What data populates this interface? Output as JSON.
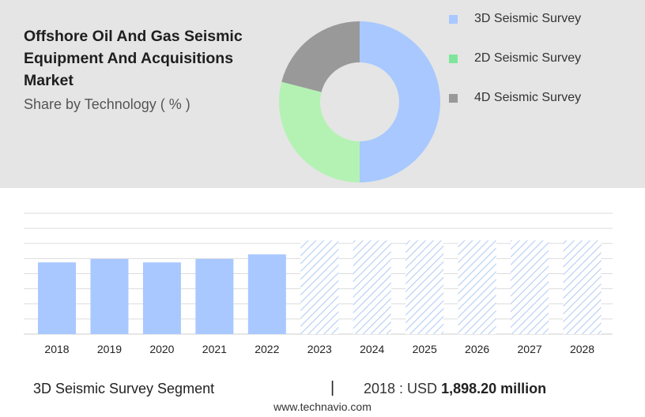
{
  "header": {
    "title": "Offshore Oil And Gas Seismic Equipment And Acquisitions Market",
    "subtitle": "Share by Technology ( % )"
  },
  "chart_data": [
    {
      "type": "pie",
      "variant": "donut",
      "categories": [
        "3D Seismic Survey",
        "2D Seismic Survey",
        "4D Seismic Survey"
      ],
      "values": [
        50,
        29,
        21
      ],
      "colors": [
        "#a8c8ff",
        "#b4f2b4",
        "#999999"
      ],
      "legend_placement": "right"
    },
    {
      "type": "bar",
      "categories": [
        "2018",
        "2019",
        "2020",
        "2021",
        "2022",
        "2023",
        "2024",
        "2025",
        "2026",
        "2027",
        "2028"
      ],
      "values": [
        1898.2,
        1990,
        1898,
        1990,
        2110,
        null,
        null,
        null,
        null,
        null,
        null
      ],
      "forecast_categories": [
        "2023",
        "2024",
        "2025",
        "2026",
        "2027",
        "2028"
      ],
      "ylim": [
        0,
        3200
      ],
      "grid": true,
      "bar_color": "#a8c8ff",
      "forecast_pattern_color": "#b4cdf5"
    }
  ],
  "footer": {
    "segment": "3D Seismic Survey Segment",
    "separator": "|",
    "year_label": "2018 : USD",
    "value": "1,898.20 million",
    "site": "www.technavio.com"
  }
}
